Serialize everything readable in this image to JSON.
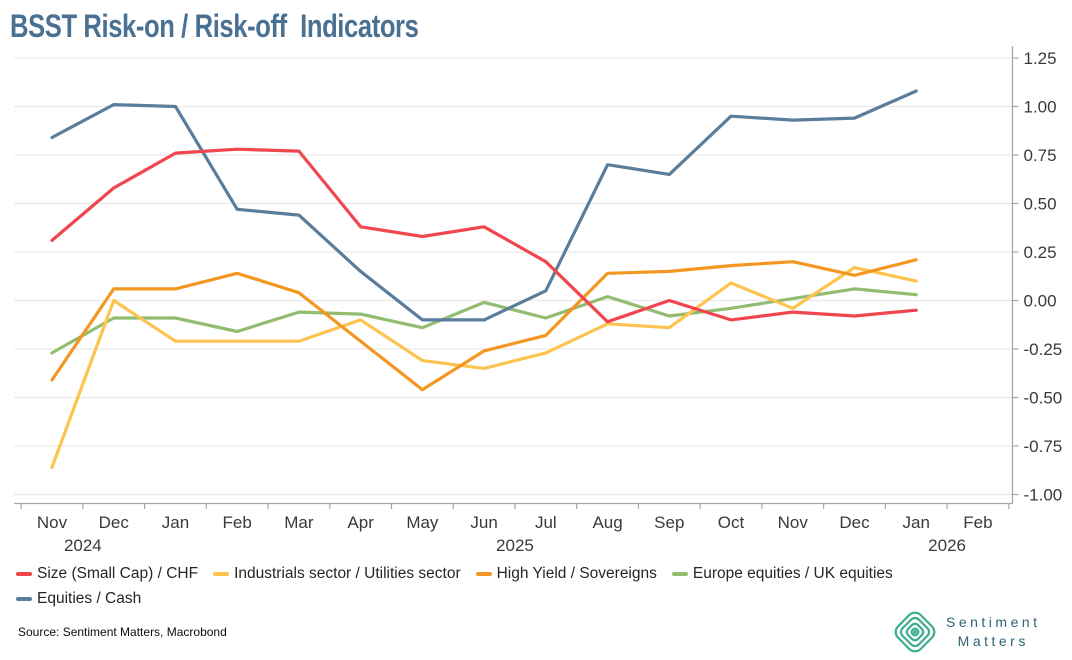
{
  "header": {
    "title": "BSST Risk-on / Risk-off  Indicators"
  },
  "chart_data": {
    "type": "line",
    "x_labels": [
      "Nov",
      "Dec",
      "Jan",
      "Feb",
      "Mar",
      "Apr",
      "May",
      "Jun",
      "Jul",
      "Aug",
      "Sep",
      "Oct",
      "Nov",
      "Dec",
      "Jan",
      "Feb"
    ],
    "years": [
      {
        "label": "2024",
        "from": 0,
        "to": 1
      },
      {
        "label": "2025",
        "from": 2,
        "to": 13
      },
      {
        "label": "2026",
        "from": 14,
        "to": 15
      }
    ],
    "ylim": [
      -1.0,
      1.25
    ],
    "ytick_step": 0.25,
    "y_axis_side": "right",
    "grid": true,
    "legend_position": "bottom",
    "legend_rows": [
      [
        0,
        1,
        2,
        3
      ],
      [
        4
      ]
    ],
    "series": [
      {
        "name": "Size (Small Cap) / CHF",
        "color": "#F2464E",
        "values": [
          0.31,
          0.58,
          0.76,
          0.78,
          0.77,
          0.38,
          0.33,
          0.38,
          0.2,
          -0.11,
          0.0,
          -0.1,
          -0.06,
          -0.08,
          -0.05
        ]
      },
      {
        "name": "Industrials sector / Utilities sector",
        "color": "#FCC44F",
        "values": [
          -0.86,
          0.0,
          -0.21,
          -0.21,
          -0.21,
          -0.1,
          -0.31,
          -0.35,
          -0.27,
          -0.12,
          -0.14,
          0.09,
          -0.04,
          0.17,
          0.1
        ]
      },
      {
        "name": "High Yield / Sovereigns",
        "color": "#F49722",
        "values": [
          -0.41,
          0.06,
          0.06,
          0.14,
          0.04,
          -0.21,
          -0.46,
          -0.26,
          -0.18,
          0.14,
          0.15,
          0.18,
          0.2,
          0.13,
          0.21
        ]
      },
      {
        "name": "Europe equities / UK equities",
        "color": "#92BD70",
        "values": [
          -0.27,
          -0.09,
          -0.09,
          -0.16,
          -0.06,
          -0.07,
          -0.14,
          -0.01,
          -0.09,
          0.02,
          -0.08,
          -0.04,
          0.01,
          0.06,
          0.03
        ]
      },
      {
        "name": "Equities / Cash",
        "color": "#5A7D9B",
        "values": [
          0.84,
          1.01,
          1.0,
          0.47,
          0.44,
          0.15,
          -0.1,
          -0.1,
          0.05,
          0.7,
          0.65,
          0.95,
          0.93,
          0.94,
          1.08
        ]
      }
    ]
  },
  "footer": {
    "source": "Source: Sentiment Matters, Macrobond"
  },
  "logo": {
    "line1": "Sentiment",
    "line2": "Matters",
    "icon": "concentric-diamond-icon",
    "icon_color": "#3BAD8D",
    "text_color": "#2E6375"
  },
  "style_colors": {
    "title": "#4A7092",
    "grid": "#E9E9E9",
    "axis": "#A6A6A6",
    "tick_text": "#3A3A3A"
  }
}
